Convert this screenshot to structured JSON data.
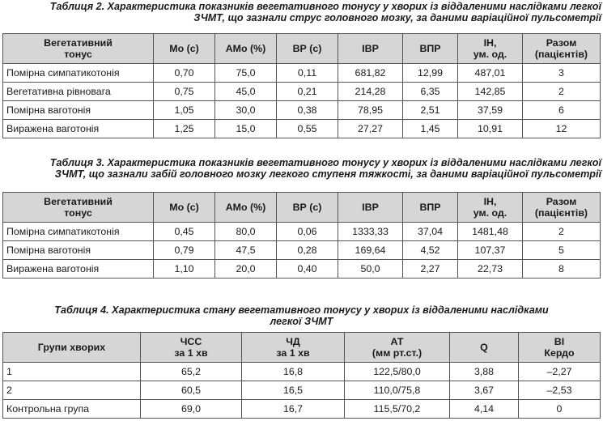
{
  "table2": {
    "caption_line1": "Таблиця 2. Характеристика показників вегетативного тонусу у хворих із віддаленими наслідками легкої",
    "caption_line2": "ЗЧМТ, що зазнали струс головного мозку, за даними варіаційної пульсометрії",
    "headers": [
      [
        "Вегетативний",
        "тонус"
      ],
      [
        "Мо (с)"
      ],
      [
        "АМо (%)"
      ],
      [
        "ВР (с)"
      ],
      [
        "ІВР"
      ],
      [
        "ВПР"
      ],
      [
        "ІН,",
        "ум. од."
      ],
      [
        "Разом",
        "(пацієнтів)"
      ]
    ],
    "rows": [
      [
        "Помірна симпатикотонія",
        "0,70",
        "75,0",
        "0,11",
        "681,82",
        "12,99",
        "487,01",
        "3"
      ],
      [
        "Вегетативна рівновага",
        "0,75",
        "45,0",
        "0,21",
        "214,28",
        "6,35",
        "142,85",
        "2"
      ],
      [
        "Помірна ваготонія",
        "1,05",
        "30,0",
        "0,38",
        "78,95",
        "2,51",
        "37,59",
        "6"
      ],
      [
        "Виражена ваготонія",
        "1,25",
        "15,0",
        "0,55",
        "27,27",
        "1,45",
        "10,91",
        "12"
      ]
    ]
  },
  "table3": {
    "caption_line1": "Таблиця 3. Характеристика показників вегетативного тонусу у хворих із віддаленими наслідками легкої",
    "caption_line2": "ЗЧМТ, що зазнали забій головного мозку легкого ступеня тяжкості, за даними варіаційної пульсометрії",
    "headers": [
      [
        "Вегетативний",
        "тонус"
      ],
      [
        "Мо (с)"
      ],
      [
        "АМо (%)"
      ],
      [
        "ВР (с)"
      ],
      [
        "ІВР"
      ],
      [
        "ВПР"
      ],
      [
        "ІН,",
        "ум. од."
      ],
      [
        "Разом",
        "(пацієнтів)"
      ]
    ],
    "rows": [
      [
        "Помірна симпатикотонія",
        "0,45",
        "80,0",
        "0,06",
        "1333,33",
        "37,04",
        "1481,48",
        "2"
      ],
      [
        "Помірна ваготонія",
        "0,79",
        "47,5",
        "0,28",
        "169,64",
        "4,52",
        "107,37",
        "5"
      ],
      [
        "Виражена ваготонія",
        "1,10",
        "20,0",
        "0,40",
        "50,0",
        "2,27",
        "22,73",
        "8"
      ]
    ]
  },
  "table4": {
    "caption_line1": "Таблиця 4. Характеристика стану вегетативного тонусу у хворих із віддаленими наслідками",
    "caption_line2": "легкої ЗЧМТ",
    "headers": [
      [
        "Групи хворих"
      ],
      [
        "ЧСС",
        "за 1 хв"
      ],
      [
        "ЧД",
        "за 1 хв"
      ],
      [
        "АТ",
        "(мм рт.ст.)"
      ],
      [
        "Q"
      ],
      [
        "ВІ",
        "Кердо"
      ]
    ],
    "rows": [
      [
        "1",
        "65,2",
        "16,8",
        "122,5/80,0",
        "3,88",
        "–2,27"
      ],
      [
        "2",
        "60,5",
        "16,5",
        "110,0/75,8",
        "3,67",
        "–2,53"
      ],
      [
        "Контрольна група",
        "69,0",
        "16,7",
        "115,5/70,2",
        "4,14",
        "0"
      ]
    ]
  }
}
